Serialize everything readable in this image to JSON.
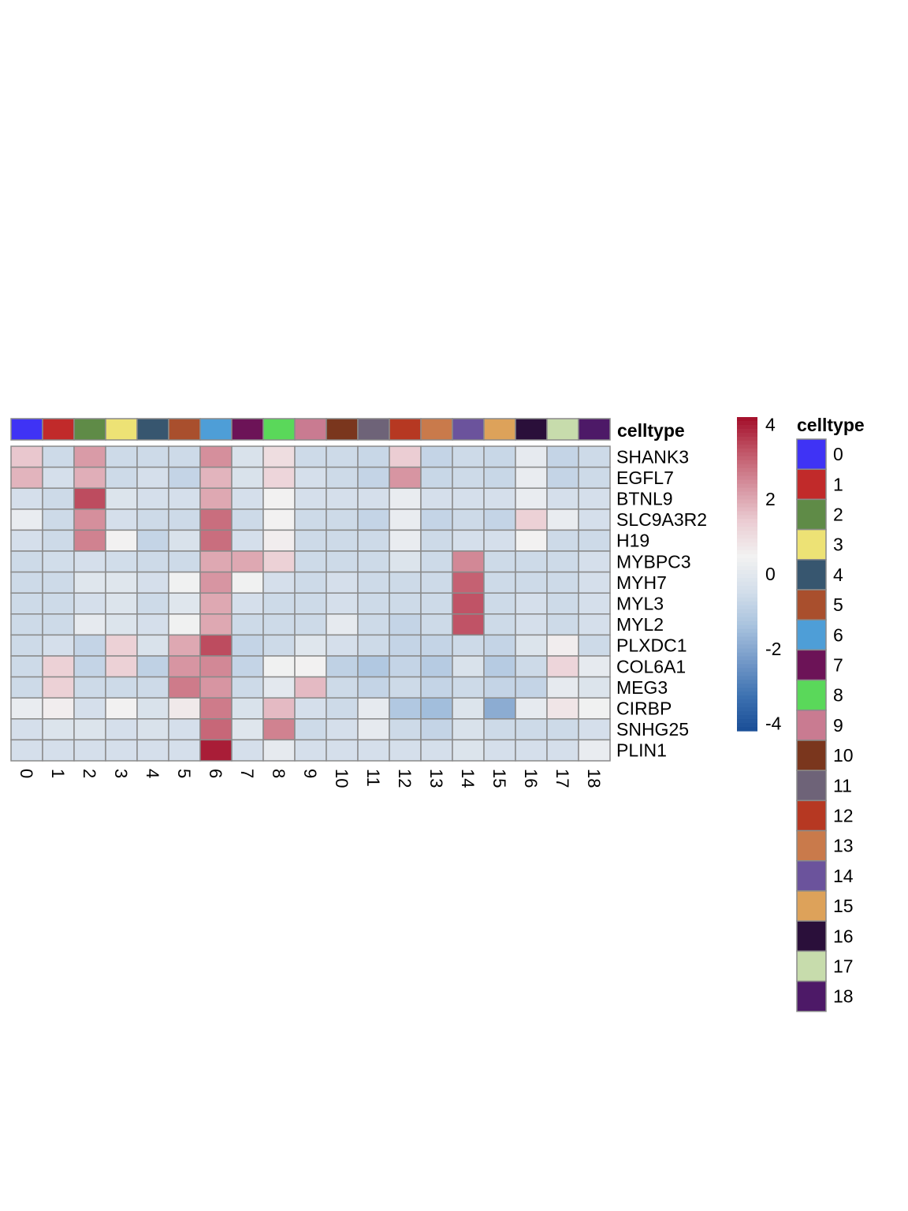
{
  "chart_data": {
    "type": "heatmap",
    "title": "",
    "annotation_label": "celltype",
    "legend_title": "celltype",
    "columns": [
      "0",
      "1",
      "2",
      "3",
      "4",
      "5",
      "6",
      "7",
      "8",
      "9",
      "10",
      "11",
      "12",
      "13",
      "14",
      "15",
      "16",
      "17",
      "18"
    ],
    "rows": [
      "SHANK3",
      "EGFL7",
      "BTNL9",
      "SLC9A3R2",
      "H19",
      "MYBPC3",
      "MYH7",
      "MYL3",
      "MYL2",
      "PLXDC1",
      "COL6A1",
      "MEG3",
      "CIRBP",
      "SNHG25",
      "PLIN1"
    ],
    "values": [
      [
        1.5,
        -0.6,
        2.2,
        -0.6,
        -0.6,
        -0.6,
        2.4,
        -0.3,
        1.0,
        -0.6,
        -0.6,
        -0.7,
        1.4,
        -0.8,
        -0.6,
        -0.7,
        0.1,
        -0.8,
        -0.6
      ],
      [
        1.8,
        -0.4,
        1.9,
        -0.6,
        -0.4,
        -0.8,
        1.8,
        -0.3,
        1.2,
        -0.4,
        -0.6,
        -0.8,
        2.3,
        -0.7,
        -0.6,
        -0.7,
        0.2,
        -0.8,
        -0.6
      ],
      [
        -0.4,
        -0.6,
        3.4,
        -0.2,
        -0.4,
        -0.4,
        2.0,
        -0.4,
        0.5,
        -0.4,
        -0.4,
        -0.4,
        0.2,
        -0.4,
        -0.4,
        -0.4,
        0.2,
        -0.4,
        -0.4
      ],
      [
        0.2,
        -0.6,
        2.4,
        -0.4,
        -0.6,
        -0.6,
        2.9,
        -0.6,
        0.5,
        -0.6,
        -0.6,
        -0.8,
        0.2,
        -0.8,
        -0.6,
        -0.8,
        1.3,
        0.2,
        -0.4
      ],
      [
        -0.4,
        -0.6,
        2.6,
        0.5,
        -0.8,
        -0.3,
        2.9,
        -0.4,
        0.6,
        -0.6,
        -0.6,
        -0.6,
        0.2,
        -0.6,
        -0.4,
        -0.4,
        0.5,
        -0.6,
        -0.6
      ],
      [
        -0.6,
        -0.5,
        -0.4,
        -0.5,
        -0.6,
        -0.6,
        2.0,
        2.0,
        1.3,
        -0.6,
        -0.6,
        -0.6,
        -0.2,
        -0.6,
        2.5,
        -0.6,
        -0.6,
        -0.6,
        -0.4
      ],
      [
        -0.6,
        -0.6,
        -0.1,
        -0.1,
        -0.4,
        0.4,
        2.3,
        0.4,
        -0.4,
        -0.6,
        -0.4,
        -0.6,
        -0.6,
        -0.6,
        3.1,
        -0.6,
        -0.6,
        -0.6,
        -0.4
      ],
      [
        -0.6,
        -0.6,
        -0.4,
        -0.2,
        -0.6,
        -0.1,
        2.0,
        -0.4,
        -0.6,
        -0.6,
        -0.4,
        -0.6,
        -0.6,
        -0.6,
        3.3,
        -0.6,
        -0.4,
        -0.6,
        -0.4
      ],
      [
        -0.6,
        -0.6,
        0.1,
        -0.2,
        -0.4,
        0.4,
        2.0,
        -0.6,
        -0.6,
        -0.6,
        0.1,
        -0.6,
        -0.8,
        -0.6,
        3.3,
        -0.6,
        -0.4,
        -0.6,
        -0.4
      ],
      [
        -0.6,
        -0.4,
        -0.8,
        1.3,
        -0.3,
        2.0,
        3.4,
        -0.8,
        -0.6,
        -0.1,
        -0.4,
        -0.6,
        -0.8,
        -0.8,
        -0.6,
        -0.8,
        -0.2,
        0.6,
        -0.6
      ],
      [
        -0.6,
        1.3,
        -0.8,
        1.3,
        -0.9,
        2.3,
        2.5,
        -0.8,
        0.4,
        0.5,
        -0.9,
        -1.2,
        -0.8,
        -1.1,
        -0.3,
        -1.1,
        -0.6,
        1.2,
        0.1
      ],
      [
        -0.6,
        1.3,
        -0.6,
        -0.6,
        -0.6,
        2.7,
        2.3,
        -0.6,
        0.0,
        1.7,
        -0.6,
        -0.8,
        -0.6,
        -0.8,
        -0.6,
        -0.8,
        -0.8,
        0.1,
        -0.2
      ],
      [
        0.2,
        0.6,
        -0.4,
        0.5,
        -0.3,
        0.7,
        2.7,
        -0.3,
        1.7,
        -0.4,
        -0.6,
        0.1,
        -1.2,
        -1.5,
        -0.2,
        -1.9,
        0.1,
        0.8,
        0.4
      ],
      [
        -0.4,
        -0.2,
        -0.2,
        -0.4,
        -0.3,
        -0.4,
        3.0,
        -0.1,
        2.6,
        -0.6,
        -0.4,
        0.1,
        -0.6,
        -0.8,
        -0.3,
        -0.6,
        -0.6,
        -0.6,
        -0.4
      ],
      [
        -0.4,
        -0.4,
        -0.4,
        -0.4,
        -0.4,
        -0.4,
        4.0,
        -0.4,
        0.1,
        -0.4,
        -0.4,
        -0.4,
        -0.4,
        -0.4,
        -0.2,
        -0.4,
        -0.4,
        -0.4,
        0.2
      ]
    ],
    "color_scale": {
      "min": -4.2,
      "max": 4.2,
      "colors": [
        "#1a4e96",
        "#3d72b1",
        "#7499c8",
        "#a8c2de",
        "#d3deea",
        "#f2f2f2",
        "#ebcdd3",
        "#d693a0",
        "#c15668",
        "#a30e2a"
      ]
    },
    "colorbar_ticks": [
      "4",
      "2",
      "0",
      "-2",
      "-4"
    ],
    "colorbar_tick_values": [
      4,
      2,
      0,
      -2,
      -4
    ],
    "celltype_colors": [
      "#3f33f5",
      "#c12a2a",
      "#5f8b47",
      "#ede275",
      "#37566f",
      "#a94f2d",
      "#4e9ed7",
      "#6c1357",
      "#5ad85a",
      "#c97b91",
      "#7a361d",
      "#6e6378",
      "#b63822",
      "#c97a4b",
      "#6b539c",
      "#dda25a",
      "#2a0f3a",
      "#c7dcac",
      "#4d1967"
    ],
    "legend_labels": [
      "0",
      "1",
      "2",
      "3",
      "4",
      "5",
      "6",
      "7",
      "8",
      "9",
      "10",
      "11",
      "12",
      "13",
      "14",
      "15",
      "16",
      "17",
      "18"
    ]
  }
}
